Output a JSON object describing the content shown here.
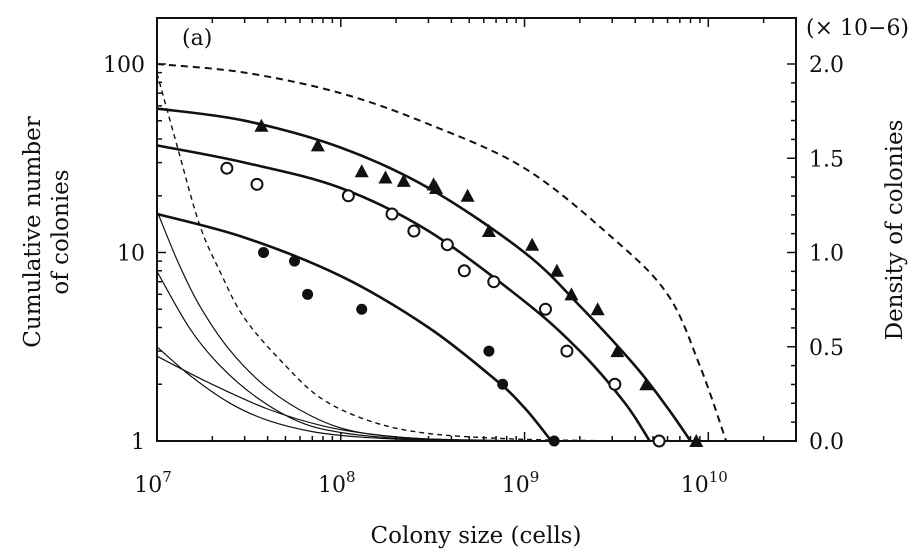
{
  "chart_data": {
    "type": "scatter",
    "panel_label": "(a)",
    "xlabel": "Colony size (cells)",
    "ylabel_left": [
      "Cumulative number",
      "of colonies"
    ],
    "ylabel_right": "Density of colonies",
    "right_multiplier": "(× 10−6)",
    "x_scale": "log",
    "y_left_scale": "log",
    "y_right_scale": "linear",
    "xlim": [
      10000000,
      30000000000
    ],
    "ylim_left": [
      1,
      200
    ],
    "ylim_right": [
      0,
      2.0
    ],
    "x_ticks": [
      {
        "value": 10000000,
        "base": "10",
        "exp": "7"
      },
      {
        "value": 100000000,
        "base": "10",
        "exp": "8"
      },
      {
        "value": 1000000000,
        "base": "10",
        "exp": "9"
      },
      {
        "value": 10000000000,
        "base": "10",
        "exp": "10"
      }
    ],
    "y_left_ticks": [
      {
        "value": 1,
        "label": "1"
      },
      {
        "value": 10,
        "label": "10"
      },
      {
        "value": 100,
        "label": "100"
      }
    ],
    "y_right_ticks": [
      {
        "value": 0.0,
        "label": "0.0"
      },
      {
        "value": 0.5,
        "label": "0.5"
      },
      {
        "value": 1.0,
        "label": "1.0"
      },
      {
        "value": 1.5,
        "label": "1.5"
      },
      {
        "value": 2.0,
        "label": "2.0"
      }
    ],
    "series": [
      {
        "marker": "triangle",
        "points": [
          [
            37000000,
            47
          ],
          [
            75000000,
            37
          ],
          [
            130000000,
            27
          ],
          [
            175000000,
            25
          ],
          [
            220000000,
            24
          ],
          [
            320000000,
            23
          ],
          [
            330000000,
            22
          ],
          [
            490000000,
            20
          ],
          [
            640000000,
            13
          ],
          [
            1100000000,
            11
          ],
          [
            1500000000,
            8
          ],
          [
            1800000000,
            6
          ],
          [
            2500000000,
            5
          ],
          [
            3200000000,
            3
          ],
          [
            4600000000,
            2
          ],
          [
            8600000000,
            1
          ]
        ],
        "fit": [
          [
            10000000,
            58
          ],
          [
            30000000,
            50
          ],
          [
            100000000,
            36
          ],
          [
            300000000,
            22
          ],
          [
            1000000000,
            10
          ],
          [
            2000000000,
            5.2
          ],
          [
            4000000000,
            2.5
          ],
          [
            6000000000,
            1.5
          ],
          [
            8000000000,
            1
          ]
        ]
      },
      {
        "marker": "open-circle",
        "points": [
          [
            24000000,
            28
          ],
          [
            35000000,
            23
          ],
          [
            110000000,
            20
          ],
          [
            190000000,
            16
          ],
          [
            250000000,
            13
          ],
          [
            380000000,
            11
          ],
          [
            470000000,
            8
          ],
          [
            680000000,
            7
          ],
          [
            1300000000,
            5
          ],
          [
            1700000000,
            3
          ],
          [
            3100000000,
            2
          ],
          [
            5400000000,
            1
          ]
        ],
        "fit": [
          [
            10000000,
            37
          ],
          [
            30000000,
            30
          ],
          [
            100000000,
            22
          ],
          [
            300000000,
            13
          ],
          [
            1000000000,
            5.5
          ],
          [
            2000000000,
            3
          ],
          [
            3500000000,
            1.6
          ],
          [
            4800000000,
            1
          ]
        ]
      },
      {
        "marker": "filled-circle",
        "points": [
          [
            38000000,
            10
          ],
          [
            56000000,
            9
          ],
          [
            66000000,
            6
          ],
          [
            130000000,
            5
          ],
          [
            640000000,
            3
          ],
          [
            760000000,
            2
          ],
          [
            1450000000,
            1
          ]
        ],
        "fit": [
          [
            10000000,
            16
          ],
          [
            30000000,
            12
          ],
          [
            100000000,
            7.5
          ],
          [
            300000000,
            4
          ],
          [
            700000000,
            2.1
          ],
          [
            1000000000,
            1.5
          ],
          [
            1400000000,
            1
          ]
        ]
      }
    ],
    "dashed_envelope": [
      [
        10000000,
        100
      ],
      [
        30000000,
        90
      ],
      [
        100000000,
        70
      ],
      [
        300000000,
        48
      ],
      [
        1000000000,
        28
      ],
      [
        3000000000,
        12
      ],
      [
        6000000000,
        6
      ],
      [
        9000000000,
        2.5
      ],
      [
        12500000000,
        1
      ]
    ],
    "density_curves_right": [
      {
        "style": "dashed",
        "points": [
          [
            10000000,
            1.95
          ],
          [
            13000000,
            1.55
          ],
          [
            17000000,
            1.15
          ],
          [
            22000000,
            0.9
          ],
          [
            30000000,
            0.65
          ],
          [
            50000000,
            0.4
          ],
          [
            80000000,
            0.22
          ],
          [
            150000000,
            0.1
          ],
          [
            300000000,
            0.04
          ],
          [
            800000000,
            0.012
          ],
          [
            2000000000,
            0.003
          ],
          [
            5000000000,
            0.0
          ]
        ]
      },
      {
        "style": "solid",
        "points": [
          [
            10000000,
            1.22
          ],
          [
            13000000,
            0.95
          ],
          [
            17000000,
            0.72
          ],
          [
            25000000,
            0.48
          ],
          [
            40000000,
            0.28
          ],
          [
            70000000,
            0.13
          ],
          [
            120000000,
            0.05
          ],
          [
            250000000,
            0.015
          ],
          [
            600000000,
            0.004
          ],
          [
            1500000000,
            0.0
          ]
        ]
      },
      {
        "style": "solid",
        "points": [
          [
            10000000,
            0.9
          ],
          [
            15000000,
            0.6
          ],
          [
            22000000,
            0.4
          ],
          [
            35000000,
            0.23
          ],
          [
            60000000,
            0.1
          ],
          [
            100000000,
            0.045
          ],
          [
            200000000,
            0.015
          ],
          [
            500000000,
            0.004
          ],
          [
            1500000000,
            0.0
          ]
        ]
      },
      {
        "style": "solid",
        "points": [
          [
            10000000,
            0.5
          ],
          [
            15000000,
            0.35
          ],
          [
            25000000,
            0.2
          ],
          [
            40000000,
            0.11
          ],
          [
            70000000,
            0.05
          ],
          [
            130000000,
            0.02
          ],
          [
            300000000,
            0.005
          ],
          [
            1000000000,
            0.0
          ]
        ]
      },
      {
        "style": "solid",
        "points": [
          [
            10000000,
            0.45
          ],
          [
            20000000,
            0.3
          ],
          [
            40000000,
            0.17
          ],
          [
            80000000,
            0.08
          ],
          [
            150000000,
            0.035
          ],
          [
            300000000,
            0.01
          ],
          [
            800000000,
            0.002
          ],
          [
            2000000000,
            0.0
          ]
        ]
      }
    ]
  }
}
